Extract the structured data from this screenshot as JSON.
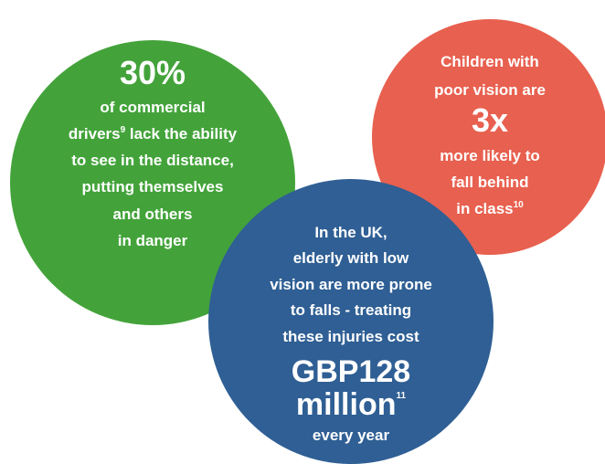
{
  "circles": [
    {
      "headline": "30%",
      "lines": [
        "of commercial",
        {
          "text": "drivers",
          "sup": "9",
          "after": " lack the ability"
        },
        "to see in the distance,",
        "putting themselves",
        "and others",
        "in danger"
      ]
    },
    {
      "intro": [
        "Children with",
        "poor vision are"
      ],
      "headline": "3x",
      "lines": [
        "more likely to",
        "fall behind",
        {
          "text": "in class",
          "sup": "10"
        }
      ]
    },
    {
      "intro": [
        "In the UK,",
        "elderly with low",
        "vision are more prone",
        "to falls - treating",
        "these injuries cost"
      ],
      "headline": "GBP128",
      "headline2": {
        "text": "million",
        "sup": "11"
      },
      "lines": [
        "every year"
      ]
    }
  ]
}
